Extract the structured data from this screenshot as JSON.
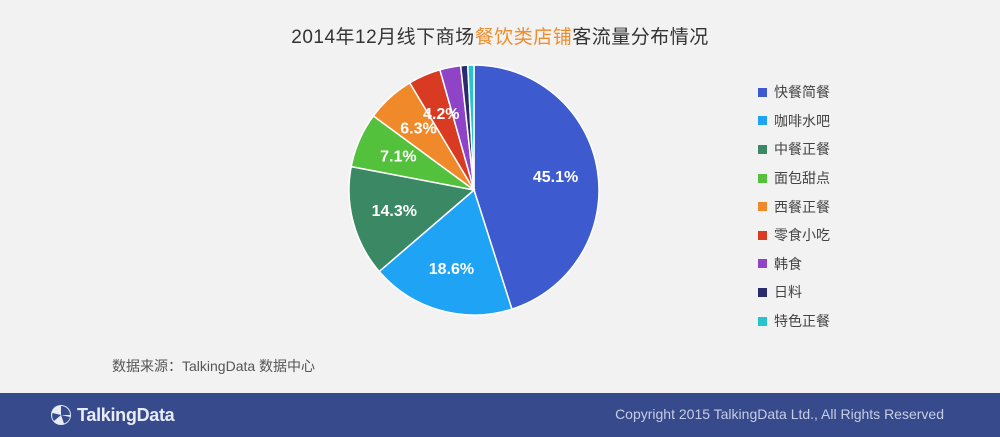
{
  "title": {
    "prefix": "2014年12月线下商场",
    "highlight": "餐饮类店铺",
    "suffix": "客流量分布情况"
  },
  "source_text": "数据来源：TalkingData 数据中心",
  "footer": {
    "brand": "TalkingData",
    "copyright": "Copyright 2015 TalkingData Ltd., All Rights Reserved"
  },
  "colors": {
    "highlight": "#f08c2a",
    "footer_bg": "#374a8c"
  },
  "chart_data": {
    "type": "pie",
    "start_angle": "12 o'clock",
    "direction": "clockwise",
    "legend_position": "right",
    "slices": [
      {
        "label": "快餐简餐",
        "value": 45.1,
        "display": "45.1%",
        "color": "#3d5bce"
      },
      {
        "label": "咖啡水吧",
        "value": 18.6,
        "display": "18.6%",
        "color": "#1fa3f5"
      },
      {
        "label": "中餐正餐",
        "value": 14.3,
        "display": "14.3%",
        "color": "#3a8864"
      },
      {
        "label": "面包甜点",
        "value": 7.1,
        "display": "7.1%",
        "color": "#54c13c"
      },
      {
        "label": "西餐正餐",
        "value": 6.3,
        "display": "6.3%",
        "color": "#f0892a"
      },
      {
        "label": "零食小吃",
        "value": 4.2,
        "display": "4.2%",
        "color": "#d93a22"
      },
      {
        "label": "韩食",
        "value": 2.7,
        "display": "",
        "color": "#8f44c8"
      },
      {
        "label": "日料",
        "value": 0.9,
        "display": "",
        "color": "#2a2a6e"
      },
      {
        "label": "特色正餐",
        "value": 0.8,
        "display": "",
        "color": "#27c3cf"
      }
    ]
  }
}
